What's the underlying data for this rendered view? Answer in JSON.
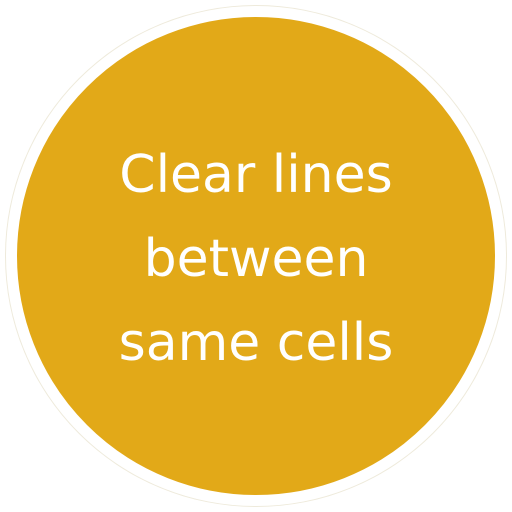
{
  "badge": {
    "fill_color": "#e2a918",
    "text_color": "#ffffff",
    "lines": [
      "Clear lines",
      "between",
      "same cells"
    ]
  }
}
